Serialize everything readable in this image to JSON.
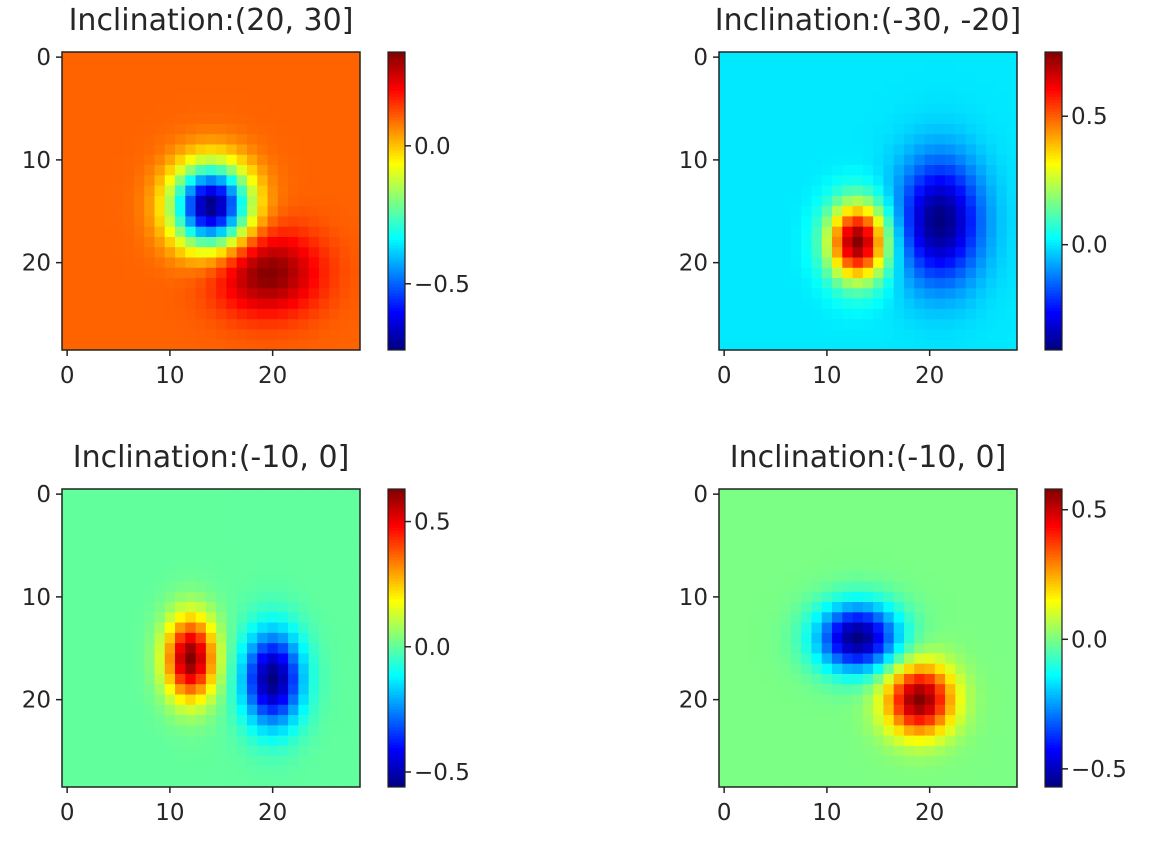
{
  "chart_data": [
    {
      "type": "heatmap",
      "title": "Inclination:(20, 30]",
      "colormap": "jet",
      "grid_size": [
        29,
        29
      ],
      "xticks": [
        "0",
        "10",
        "20"
      ],
      "yticks": [
        "0",
        "10",
        "20"
      ],
      "colorbar": {
        "range": [
          -0.74,
          0.34
        ],
        "ticks": [
          {
            "value": 0.0,
            "label": "0.0"
          },
          {
            "value": -0.5,
            "label": "−0.5"
          }
        ]
      },
      "background_value": 0.1,
      "features": [
        {
          "kind": "minimum",
          "x": 14,
          "y": 14.5,
          "value": -0.74,
          "spread": [
            2.6,
            2.8
          ]
        },
        {
          "kind": "maximum",
          "x": 19.5,
          "y": 21,
          "value": 0.34,
          "spread": [
            3.5,
            2.8
          ]
        }
      ]
    },
    {
      "type": "heatmap",
      "title": "Inclination:(-30, -20]",
      "colormap": "jet",
      "grid_size": [
        29,
        29
      ],
      "xticks": [
        "0",
        "10",
        "20"
      ],
      "yticks": [
        "0",
        "10",
        "20"
      ],
      "colorbar": {
        "range": [
          -0.41,
          0.75
        ],
        "ticks": [
          {
            "value": 0.5,
            "label": "0.5"
          },
          {
            "value": 0.0,
            "label": "0.0"
          }
        ]
      },
      "background_value": 0.0,
      "features": [
        {
          "kind": "maximum",
          "x": 13,
          "y": 18,
          "value": 0.75,
          "spread": [
            2.0,
            2.6
          ]
        },
        {
          "kind": "minimum",
          "x": 21,
          "y": 16,
          "value": -0.41,
          "spread": [
            2.8,
            4.2
          ]
        }
      ]
    },
    {
      "type": "heatmap",
      "title": "Inclination:(-10, 0]",
      "colormap": "jet",
      "grid_size": [
        29,
        29
      ],
      "xticks": [
        "0",
        "10",
        "20"
      ],
      "yticks": [
        "0",
        "10",
        "20"
      ],
      "colorbar": {
        "range": [
          -0.56,
          0.63
        ],
        "ticks": [
          {
            "value": 0.5,
            "label": "0.5"
          },
          {
            "value": 0.0,
            "label": "0.0"
          },
          {
            "value": -0.5,
            "label": "−0.5"
          }
        ]
      },
      "background_value": 0.0,
      "features": [
        {
          "kind": "maximum",
          "x": 12,
          "y": 16,
          "value": 0.63,
          "spread": [
            1.7,
            2.8
          ]
        },
        {
          "kind": "minimum",
          "x": 20,
          "y": 18,
          "value": -0.56,
          "spread": [
            2.0,
            3.2
          ]
        }
      ]
    },
    {
      "type": "heatmap",
      "title": "Inclination:(-10, 0]",
      "colormap": "jet",
      "grid_size": [
        29,
        29
      ],
      "xticks": [
        "0",
        "10",
        "20"
      ],
      "yticks": [
        "0",
        "10",
        "20"
      ],
      "colorbar": {
        "range": [
          -0.57,
          0.58
        ],
        "ticks": [
          {
            "value": 0.5,
            "label": "0.5"
          },
          {
            "value": 0.0,
            "label": "0.0"
          },
          {
            "value": -0.5,
            "label": "−0.5"
          }
        ]
      },
      "background_value": 0.0,
      "features": [
        {
          "kind": "minimum",
          "x": 13,
          "y": 14,
          "value": -0.57,
          "spread": [
            2.8,
            2.3
          ]
        },
        {
          "kind": "maximum",
          "x": 19,
          "y": 20,
          "value": 0.58,
          "spread": [
            2.3,
            2.4
          ]
        }
      ]
    }
  ]
}
